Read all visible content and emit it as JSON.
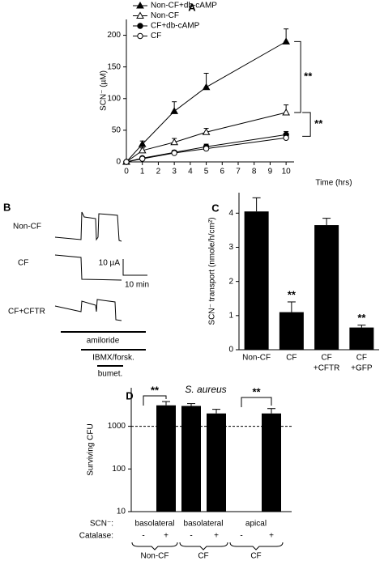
{
  "chart_data": [
    {
      "type": "line",
      "panel": "A",
      "xlabel": "Time (hrs)",
      "ylabel": "SCN⁻ (µM)",
      "x": [
        0,
        1,
        3,
        5,
        10
      ],
      "series": [
        {
          "name": "Non-CF+db-cAMP",
          "color": "#000000",
          "marker": "triangle",
          "filled": true,
          "values": [
            0,
            28,
            80,
            118,
            190
          ],
          "errors": [
            0,
            5,
            15,
            22,
            20
          ]
        },
        {
          "name": "Non-CF",
          "color": "#000000",
          "marker": "triangle",
          "filled": false,
          "values": [
            0,
            18,
            31,
            47,
            78
          ],
          "errors": [
            0,
            4,
            6,
            6,
            12
          ]
        },
        {
          "name": "CF+db-cAMP",
          "color": "#000000",
          "marker": "circle",
          "filled": true,
          "values": [
            0,
            6,
            15,
            24,
            43
          ],
          "errors": [
            0,
            2,
            3,
            4,
            5
          ]
        },
        {
          "name": "CF",
          "color": "#000000",
          "marker": "circle",
          "filled": false,
          "values": [
            0,
            5,
            14,
            21,
            38
          ],
          "errors": [
            0,
            2,
            3,
            3,
            5
          ]
        }
      ],
      "xlim": [
        0,
        10.5
      ],
      "xticks": [
        0,
        1,
        2,
        3,
        4,
        5,
        6,
        7,
        8,
        9,
        10
      ],
      "ylim": [
        0,
        225
      ],
      "yticks": [
        0,
        50,
        100,
        150,
        200
      ],
      "legend": "upper left",
      "annotations": [
        "**",
        "**"
      ]
    },
    {
      "type": "bar",
      "panel": "C",
      "ylabel": "SCN⁻ transport (nmole/h/cm²)",
      "categories": [
        [
          "Non-CF"
        ],
        [
          "CF"
        ],
        [
          "CF",
          "+CFTR"
        ],
        [
          "CF",
          "+GFP"
        ]
      ],
      "values": [
        4.05,
        1.1,
        3.65,
        0.65
      ],
      "errors": [
        0.4,
        0.3,
        0.2,
        0.07
      ],
      "color": "#000000",
      "ylim": [
        0,
        4.6
      ],
      "yticks": [
        0,
        1,
        2,
        3,
        4
      ],
      "annotations": [
        "**",
        "**"
      ]
    },
    {
      "type": "bar",
      "panel": "D",
      "title": "S. aureus",
      "ylabel": "Surviving CFU",
      "log_scale": true,
      "scn_label": "SCN⁻:",
      "catalase_label": "Catalase:",
      "categories": [
        "-",
        "+",
        "-",
        "+",
        "-",
        "+"
      ],
      "groups": [
        "basolateral",
        "basolateral",
        "apical"
      ],
      "cells": [
        "Non-CF",
        "CF",
        "CF"
      ],
      "values": [
        null,
        3100,
        3000,
        2000,
        null,
        2000
      ],
      "errors": [
        null,
        700,
        400,
        500,
        null,
        600
      ],
      "color": "#000000",
      "ylim": [
        10,
        8000
      ],
      "yticks": [
        10,
        100,
        1000
      ],
      "ref_line": 1000,
      "annotations": [
        "**",
        "**"
      ]
    }
  ],
  "traces": {
    "panel": "B",
    "rows": [
      "Non-CF",
      "CF",
      "CF+CFTR"
    ],
    "scale_current": "10 µA",
    "scale_time": "10 min",
    "drugs": [
      "amiloride",
      "IBMX/forsk.",
      "bumet."
    ]
  }
}
